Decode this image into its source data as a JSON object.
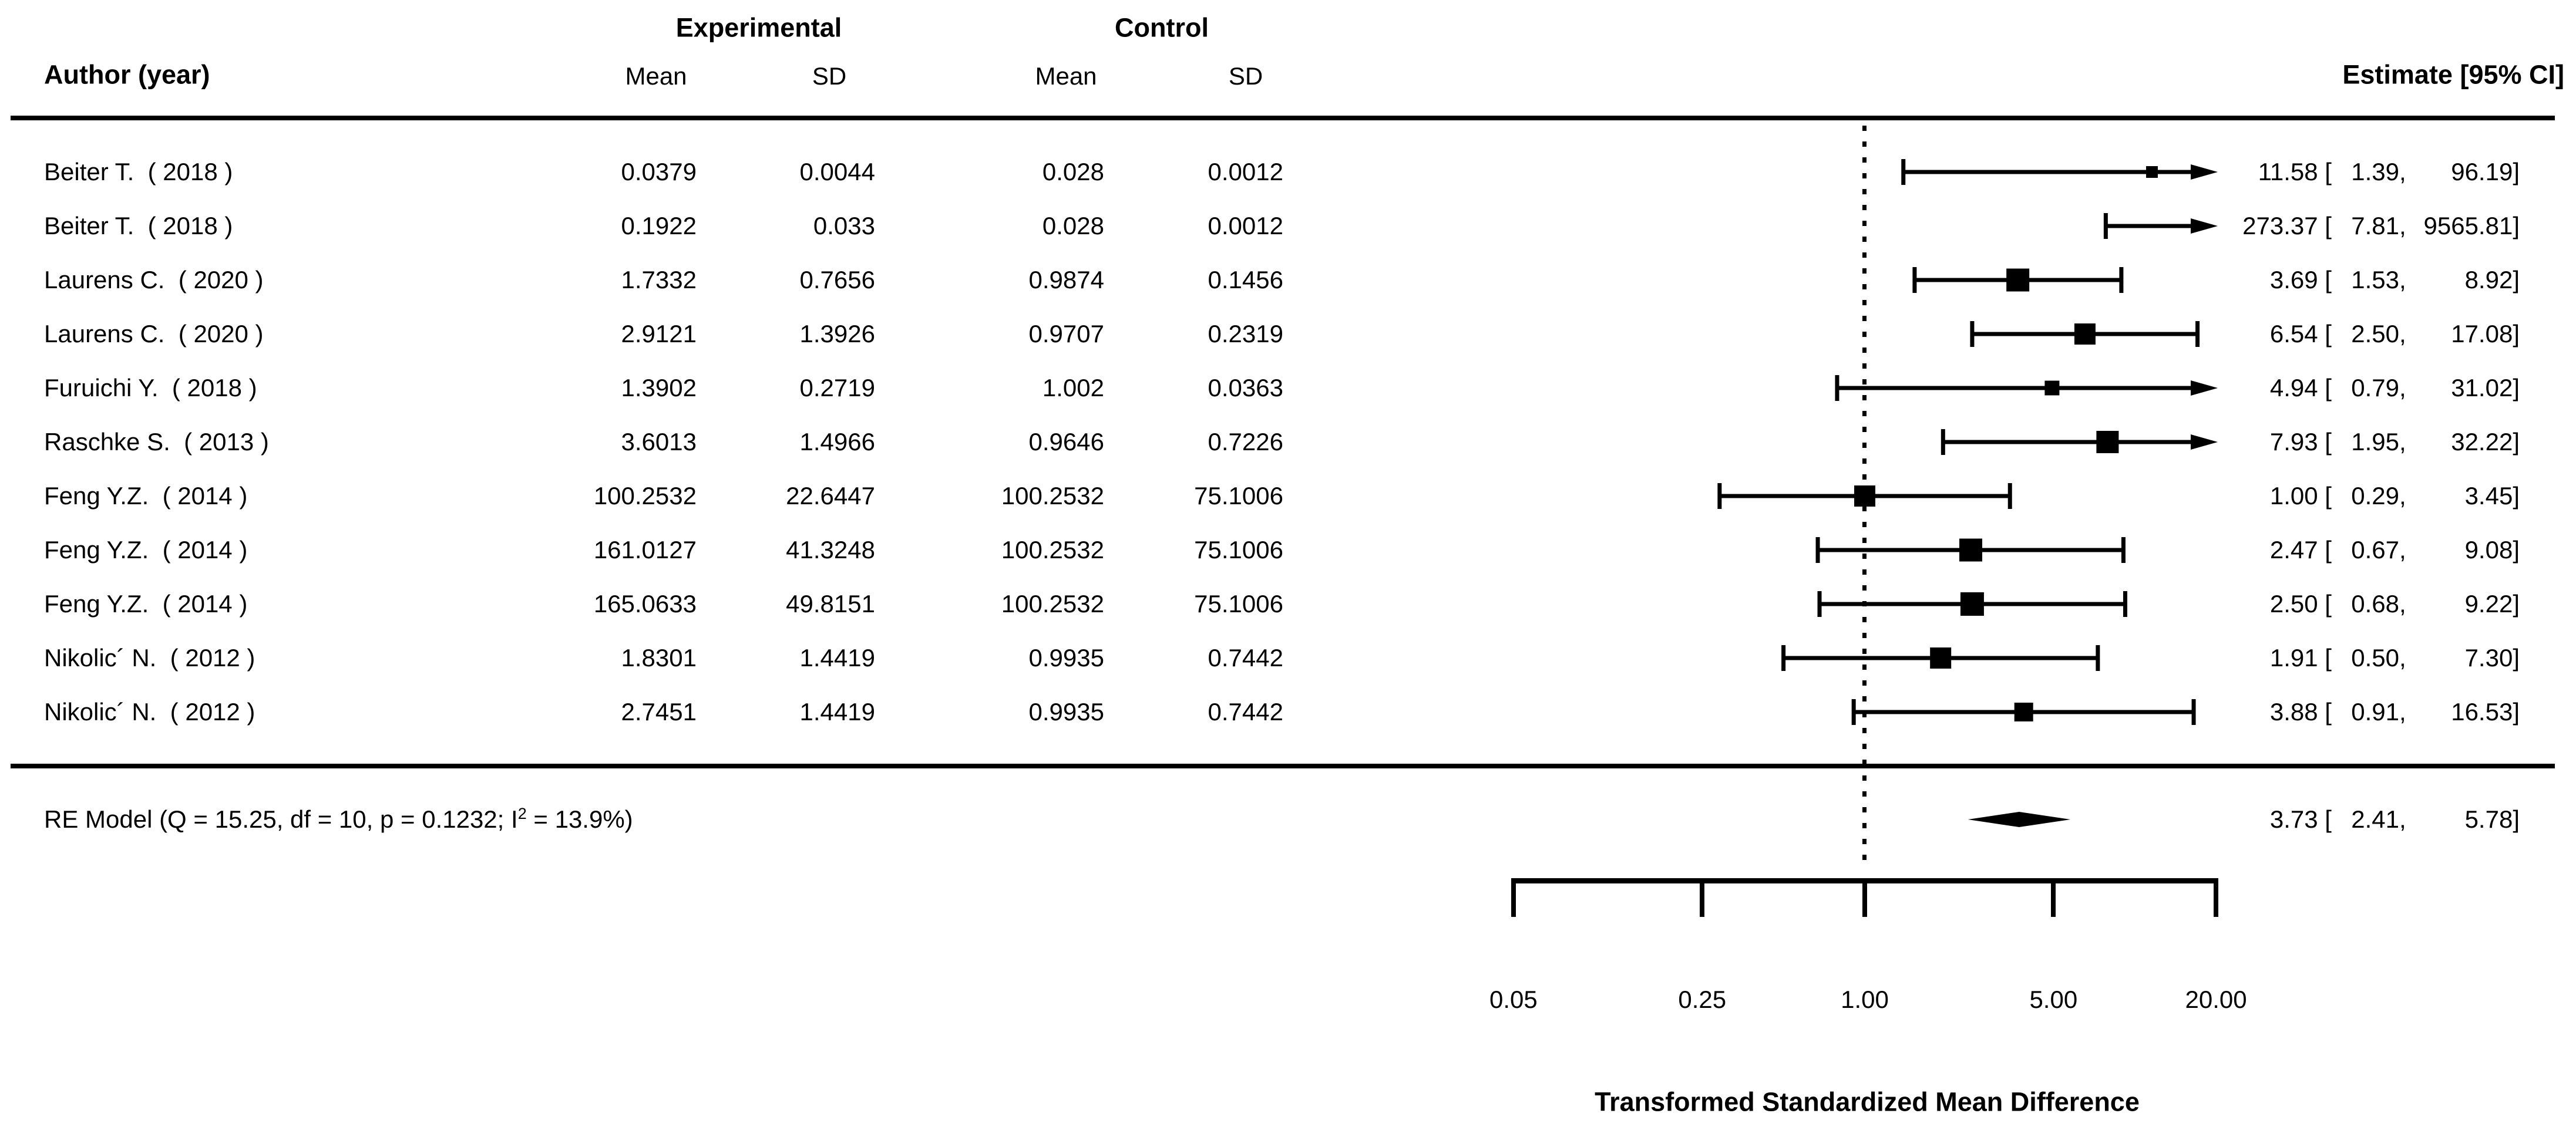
{
  "header": {
    "group_experimental": "Experimental",
    "group_control": "Control",
    "col_author": "Author (year)",
    "col_mean_exp": "Mean",
    "col_sd_exp": "SD",
    "col_mean_ctrl": "Mean",
    "col_sd_ctrl": "SD",
    "col_estimate": "Estimate [95% CI]"
  },
  "estimate_format": {
    "open": " [",
    "sep": ", ",
    "close": "]"
  },
  "rows": [
    {
      "author": "Beiter T.  ( 2018 )",
      "mean_e": "0.0379",
      "sd_e": "0.0044",
      "mean_c": "0.028",
      "sd_c": "0.0012",
      "est": "11.58",
      "lo": "1.39",
      "hi": "96.19"
    },
    {
      "author": "Beiter T.  ( 2018 )",
      "mean_e": "0.1922",
      "sd_e": "0.033",
      "mean_c": "0.028",
      "sd_c": "0.0012",
      "est": "273.37",
      "lo": "7.81",
      "hi": "9565.81"
    },
    {
      "author": "Laurens C.  ( 2020 )",
      "mean_e": "1.7332",
      "sd_e": "0.7656",
      "mean_c": "0.9874",
      "sd_c": "0.1456",
      "est": "3.69",
      "lo": "1.53",
      "hi": "8.92"
    },
    {
      "author": "Laurens C.  ( 2020 )",
      "mean_e": "2.9121",
      "sd_e": "1.3926",
      "mean_c": "0.9707",
      "sd_c": "0.2319",
      "est": "6.54",
      "lo": "2.50",
      "hi": "17.08"
    },
    {
      "author": "Furuichi Y.  ( 2018 )",
      "mean_e": "1.3902",
      "sd_e": "0.2719",
      "mean_c": "1.002",
      "sd_c": "0.0363",
      "est": "4.94",
      "lo": "0.79",
      "hi": "31.02"
    },
    {
      "author": "Raschke S.  ( 2013 )",
      "mean_e": "3.6013",
      "sd_e": "1.4966",
      "mean_c": "0.9646",
      "sd_c": "0.7226",
      "est": "7.93",
      "lo": "1.95",
      "hi": "32.22"
    },
    {
      "author": "Feng Y.Z.  ( 2014 )",
      "mean_e": "100.2532",
      "sd_e": "22.6447",
      "mean_c": "100.2532",
      "sd_c": "75.1006",
      "est": "1.00",
      "lo": "0.29",
      "hi": "3.45"
    },
    {
      "author": "Feng Y.Z.  ( 2014 )",
      "mean_e": "161.0127",
      "sd_e": "41.3248",
      "mean_c": "100.2532",
      "sd_c": "75.1006",
      "est": "2.47",
      "lo": "0.67",
      "hi": "9.08"
    },
    {
      "author": "Feng Y.Z.  ( 2014 )",
      "mean_e": "165.0633",
      "sd_e": "49.8151",
      "mean_c": "100.2532",
      "sd_c": "75.1006",
      "est": "2.50",
      "lo": "0.68",
      "hi": "9.22"
    },
    {
      "author": "Nikolic´ N.  ( 2012 )",
      "mean_e": "1.8301",
      "sd_e": "1.4419",
      "mean_c": "0.9935",
      "sd_c": "0.7442",
      "est": "1.91",
      "lo": "0.50",
      "hi": "7.30"
    },
    {
      "author": "Nikolic´ N.  ( 2012 )",
      "mean_e": "2.7451",
      "sd_e": "1.4419",
      "mean_c": "0.9935",
      "sd_c": "0.7442",
      "est": "3.88",
      "lo": "0.91",
      "hi": "16.53"
    }
  ],
  "summary": {
    "label_pre": "RE Model (Q = 15.25, df = 10, p = 0.1232; I",
    "label_sup": "2",
    "label_post": " = 13.9%)",
    "est": "3.73",
    "lo": "2.41",
    "hi": "5.78"
  },
  "axis": {
    "tick_labels": [
      "0.05",
      "0.25",
      "1.00",
      "5.00",
      "20.00"
    ],
    "title": "Transformed Standardized Mean Difference"
  },
  "chart_data": {
    "type": "forest",
    "x_scale": "log",
    "xlim": [
      0.05,
      20
    ],
    "x_ticks": [
      0.05,
      0.25,
      1.0,
      5.0,
      20.0
    ],
    "x_title": "Transformed Standardized Mean Difference",
    "reference_line": 1.0,
    "estimate_header": "Estimate [95% CI]",
    "studies": [
      {
        "author": "Beiter T. (2018)",
        "exp_mean": 0.0379,
        "exp_sd": 0.0044,
        "ctrl_mean": 0.028,
        "ctrl_sd": 0.0012,
        "estimate": 11.58,
        "ci_lower": 1.39,
        "ci_upper": 96.19,
        "upper_offscale": true,
        "point_offscale": false,
        "marker_px": 20
      },
      {
        "author": "Beiter T. (2018)",
        "exp_mean": 0.1922,
        "exp_sd": 0.033,
        "ctrl_mean": 0.028,
        "ctrl_sd": 0.0012,
        "estimate": 273.37,
        "ci_lower": 7.81,
        "ci_upper": 9565.81,
        "upper_offscale": true,
        "point_offscale": true,
        "marker_px": 0
      },
      {
        "author": "Laurens C. (2020)",
        "exp_mean": 1.7332,
        "exp_sd": 0.7656,
        "ctrl_mean": 0.9874,
        "ctrl_sd": 0.1456,
        "estimate": 3.69,
        "ci_lower": 1.53,
        "ci_upper": 8.92,
        "upper_offscale": false,
        "point_offscale": false,
        "marker_px": 39
      },
      {
        "author": "Laurens C. (2020)",
        "exp_mean": 2.9121,
        "exp_sd": 1.3926,
        "ctrl_mean": 0.9707,
        "ctrl_sd": 0.2319,
        "estimate": 6.54,
        "ci_lower": 2.5,
        "ci_upper": 17.08,
        "upper_offscale": false,
        "point_offscale": false,
        "marker_px": 36
      },
      {
        "author": "Furuichi Y. (2018)",
        "exp_mean": 1.3902,
        "exp_sd": 0.2719,
        "ctrl_mean": 1.002,
        "ctrl_sd": 0.0363,
        "estimate": 4.94,
        "ci_lower": 0.79,
        "ci_upper": 31.02,
        "upper_offscale": true,
        "point_offscale": false,
        "marker_px": 25
      },
      {
        "author": "Raschke S. (2013)",
        "exp_mean": 3.6013,
        "exp_sd": 1.4966,
        "ctrl_mean": 0.9646,
        "ctrl_sd": 0.7226,
        "estimate": 7.93,
        "ci_lower": 1.95,
        "ci_upper": 32.22,
        "upper_offscale": true,
        "point_offscale": false,
        "marker_px": 38
      },
      {
        "author": "Feng Y.Z. (2014)",
        "exp_mean": 100.2532,
        "exp_sd": 22.6447,
        "ctrl_mean": 100.2532,
        "ctrl_sd": 75.1006,
        "estimate": 1.0,
        "ci_lower": 0.29,
        "ci_upper": 3.45,
        "upper_offscale": false,
        "point_offscale": false,
        "marker_px": 36
      },
      {
        "author": "Feng Y.Z. (2014)",
        "exp_mean": 161.0127,
        "exp_sd": 41.3248,
        "ctrl_mean": 100.2532,
        "ctrl_sd": 75.1006,
        "estimate": 2.47,
        "ci_lower": 0.67,
        "ci_upper": 9.08,
        "upper_offscale": false,
        "point_offscale": false,
        "marker_px": 39
      },
      {
        "author": "Feng Y.Z. (2014)",
        "exp_mean": 165.0633,
        "exp_sd": 49.8151,
        "ctrl_mean": 100.2532,
        "ctrl_sd": 75.1006,
        "estimate": 2.5,
        "ci_lower": 0.68,
        "ci_upper": 9.22,
        "upper_offscale": false,
        "point_offscale": false,
        "marker_px": 40
      },
      {
        "author": "Nikolic´ N. (2012)",
        "exp_mean": 1.8301,
        "exp_sd": 1.4419,
        "ctrl_mean": 0.9935,
        "ctrl_sd": 0.7442,
        "estimate": 1.91,
        "ci_lower": 0.5,
        "ci_upper": 7.3,
        "upper_offscale": false,
        "point_offscale": false,
        "marker_px": 36
      },
      {
        "author": "Nikolic´ N. (2012)",
        "exp_mean": 2.7451,
        "exp_sd": 1.4419,
        "ctrl_mean": 0.9935,
        "ctrl_sd": 0.7442,
        "estimate": 3.88,
        "ci_lower": 0.91,
        "ci_upper": 16.53,
        "upper_offscale": false,
        "point_offscale": false,
        "marker_px": 32
      }
    ],
    "summary": {
      "label": "RE Model",
      "estimate": 3.73,
      "ci_lower": 2.41,
      "ci_upper": 5.78,
      "heterogeneity": {
        "Q": 15.25,
        "df": 10,
        "p": 0.1232,
        "I2_percent": 13.9
      }
    },
    "colors": {
      "marks": "#000000",
      "background": "#ffffff"
    }
  }
}
